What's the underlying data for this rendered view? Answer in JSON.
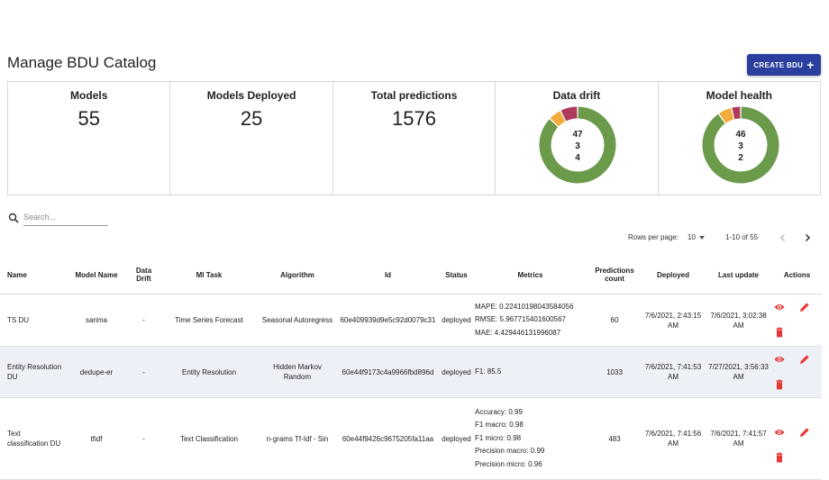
{
  "header": {
    "title": "Manage BDU Catalog",
    "create_label": "CREATE BDU"
  },
  "stats": {
    "models": {
      "label": "Models",
      "value": "55"
    },
    "deployed": {
      "label": "Models Deployed",
      "value": "25"
    },
    "predictions": {
      "label": "Total predictions",
      "value": "1576"
    },
    "drift": {
      "label": "Data drift",
      "values": [
        "47",
        "3",
        "4"
      ],
      "segments": [
        47,
        3,
        4
      ]
    },
    "health": {
      "label": "Model health",
      "values": [
        "46",
        "3",
        "2"
      ],
      "segments": [
        46,
        3,
        2
      ]
    },
    "colors": {
      "green": "#6a9a4a",
      "orange": "#f0ad3c",
      "red": "#b03a5c"
    }
  },
  "search": {
    "placeholder": "Search..."
  },
  "pagination": {
    "rows_label": "Rows per page:",
    "rows_value": "10",
    "range": "1-10 of 55"
  },
  "table": {
    "headers": {
      "name": "Name",
      "model_name": "Model Name",
      "data_drift": "Data Drift",
      "ml_task": "Ml Task",
      "algorithm": "Algorithm",
      "id": "Id",
      "status": "Status",
      "metrics": "Metrics",
      "predictions": "Predictions count",
      "deployed": "Deployed",
      "last_update": "Last update",
      "actions": "Actions"
    },
    "rows": [
      {
        "name": "TS DU",
        "model_name": "sarima",
        "data_drift": "-",
        "ml_task": "Time Series Forecast",
        "algorithm": "Seasonal Autoregress",
        "id": "60e409939d9e5c92d0079c31",
        "status": "deployed",
        "metrics": [
          "MAPE: 0.22410198043584056",
          "RMSE: 5.967715401600567",
          "MAE: 4.429446131996087"
        ],
        "predictions": "60",
        "deployed": "7/6/2021, 2:43:15 AM",
        "last_update": "7/6/2021, 3:02:38 AM"
      },
      {
        "name": "Entity Resolution DU",
        "model_name": "dedupe-er",
        "data_drift": "-",
        "ml_task": "Entity Resolution",
        "algorithm": "Hidden Markov Random",
        "id": "60e44f9173c4a9966fbd896d",
        "status": "deployed",
        "metrics": [
          "F1: 85.5"
        ],
        "predictions": "1033",
        "deployed": "7/6/2021, 7:41:53 AM",
        "last_update": "7/27/2021, 3:56:33 AM"
      },
      {
        "name": "Text classification DU",
        "model_name": "tfidf",
        "data_drift": "-",
        "ml_task": "Text Classification",
        "algorithm": "n-grams Tf-Idf - Sin",
        "id": "60e44f9426c9675205fa11aa",
        "status": "deployed",
        "metrics": [
          "Accuracy: 0.99",
          "F1 macro: 0.98",
          "F1 micro: 0.98",
          "Precision macro: 0.99",
          "Precision micro: 0.96"
        ],
        "predictions": "483",
        "deployed": "7/6/2021, 7:41:56 AM",
        "last_update": "7/6/2021, 7:41:57 AM"
      }
    ]
  },
  "icons": {
    "view": "eye-icon",
    "edit": "pencil-icon",
    "delete": "trash-icon",
    "action_color": "#e53935"
  }
}
